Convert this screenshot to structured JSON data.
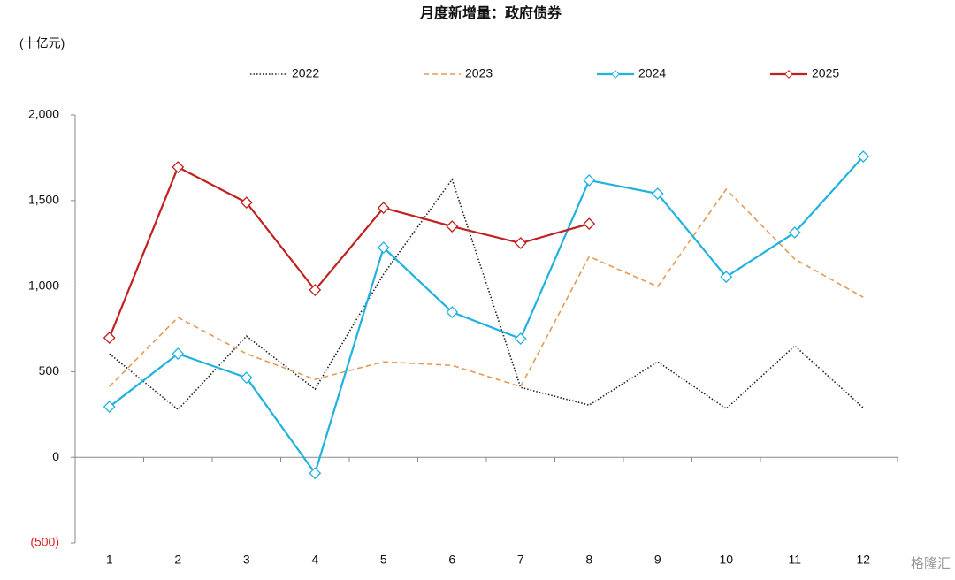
{
  "chart_data": {
    "type": "line",
    "title": "月度新增量：政府债券",
    "y_axis_label": "(十亿元)",
    "watermark": "格隆汇",
    "categories": [
      "1",
      "2",
      "3",
      "4",
      "5",
      "6",
      "7",
      "8",
      "9",
      "10",
      "11",
      "12"
    ],
    "ylim": [
      -500,
      2000
    ],
    "yticks": [
      {
        "value": 2000,
        "label": "2,000"
      },
      {
        "value": 1500,
        "label": "1,500"
      },
      {
        "value": 1000,
        "label": "1,000"
      },
      500,
      0,
      {
        "value": -500,
        "label": "(500)"
      }
    ],
    "negative_label_color": "#e02020",
    "grid": false,
    "legend": "top",
    "series": [
      {
        "name": "2022",
        "color": "#222222",
        "dash": "dotted",
        "marker": false,
        "values": [
          605,
          279,
          708,
          398,
          1070,
          1623,
          408,
          305,
          558,
          284,
          651,
          289
        ]
      },
      {
        "name": "2023",
        "color": "#e59a55",
        "dash": "dashed",
        "marker": false,
        "values": [
          413,
          817,
          605,
          455,
          558,
          537,
          413,
          1173,
          997,
          1566,
          1158,
          935
        ]
      },
      {
        "name": "2024",
        "color": "#1fb1e0",
        "dash": "solid",
        "marker": true,
        "values": [
          295,
          605,
          465,
          -93,
          1225,
          848,
          693,
          1618,
          1540,
          1054,
          1313,
          1757
        ]
      },
      {
        "name": "2025",
        "color": "#c0201e",
        "dash": "solid",
        "marker": true,
        "values": [
          698,
          1695,
          1488,
          977,
          1457,
          1349,
          1251,
          1364,
          null,
          null,
          null,
          null
        ]
      }
    ]
  }
}
